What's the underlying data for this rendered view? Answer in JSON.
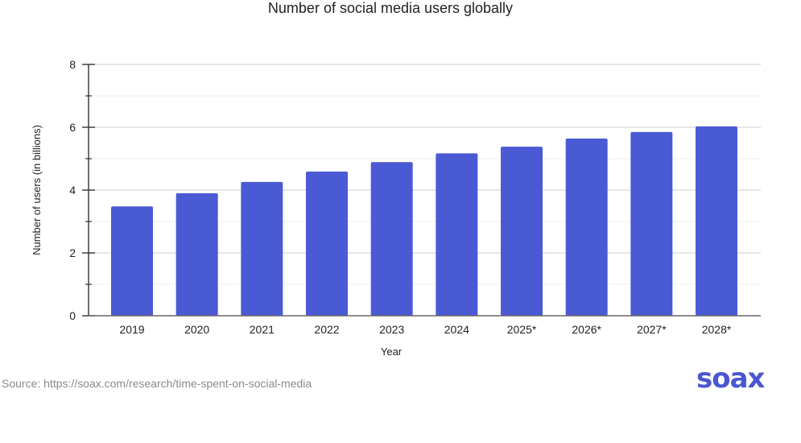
{
  "chart_data": {
    "type": "bar",
    "title": "Number of social media users globally",
    "xlabel": "Year",
    "ylabel": "Number of users (in billions)",
    "categories": [
      "2019",
      "2020",
      "2021",
      "2022",
      "2023",
      "2024",
      "2025*",
      "2026*",
      "2027*",
      "2028*"
    ],
    "values": [
      3.48,
      3.9,
      4.26,
      4.59,
      4.89,
      5.17,
      5.38,
      5.64,
      5.85,
      6.03
    ],
    "ylim": [
      0,
      8
    ],
    "yticks": [
      0,
      2,
      4,
      6,
      8
    ],
    "minor_yticks": [
      1,
      3,
      5,
      7
    ],
    "grid": true,
    "bar_color": "#4a5ad4"
  },
  "source": "Source: https://soax.com/research/time-spent-on-social-media",
  "logo": "soax"
}
